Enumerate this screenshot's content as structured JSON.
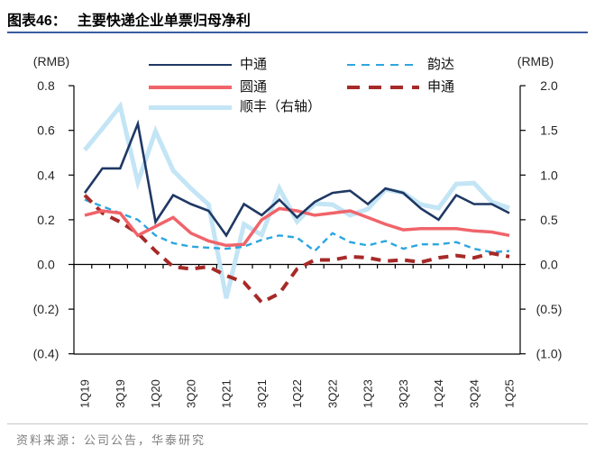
{
  "header": {
    "label": "图表46：",
    "title": "主要快递企业单票归母净利"
  },
  "axes": {
    "left_unit": "(RMB)",
    "right_unit": "(RMB)",
    "left_ticks": [
      "0.8",
      "0.6",
      "0.4",
      "0.2",
      "0.0",
      "(0.2)",
      "(0.4)"
    ],
    "left_values": [
      0.8,
      0.6,
      0.4,
      0.2,
      0.0,
      -0.2,
      -0.4
    ],
    "right_ticks": [
      "2.0",
      "1.5",
      "1.0",
      "0.5",
      "0.0",
      "(0.5)",
      "(1.0)"
    ],
    "right_values": [
      2.0,
      1.5,
      1.0,
      0.5,
      0.0,
      -0.5,
      -1.0
    ],
    "x_labels": [
      "1Q19",
      "3Q19",
      "1Q20",
      "3Q20",
      "1Q21",
      "3Q21",
      "1Q22",
      "3Q22",
      "1Q23",
      "3Q23",
      "1Q24",
      "3Q24",
      "1Q25"
    ]
  },
  "chart_data": {
    "type": "line",
    "title": "主要快递企业单票归母净利",
    "xlabel": "",
    "ylabel_left": "(RMB)",
    "ylabel_right": "(RMB)",
    "left_range": [
      -0.4,
      0.8
    ],
    "right_range": [
      -1.0,
      2.0
    ],
    "grid": false,
    "legend_position": "top-two-columns",
    "x": [
      "1Q19",
      "2Q19",
      "3Q19",
      "4Q19",
      "1Q20",
      "2Q20",
      "3Q20",
      "4Q20",
      "1Q21",
      "2Q21",
      "3Q21",
      "4Q21",
      "1Q22",
      "2Q22",
      "3Q22",
      "4Q22",
      "1Q23",
      "2Q23",
      "3Q23",
      "4Q23",
      "1Q24",
      "2Q24",
      "3Q24",
      "4Q24",
      "1Q25"
    ],
    "series": [
      {
        "id": "zto",
        "name": "中通",
        "axis": "left",
        "style": "solid",
        "color": "#1F3864",
        "width": 2.6,
        "values": [
          0.32,
          0.43,
          0.43,
          0.63,
          0.19,
          0.31,
          0.27,
          0.24,
          0.13,
          0.27,
          0.22,
          0.29,
          0.21,
          0.28,
          0.32,
          0.33,
          0.27,
          0.34,
          0.32,
          0.25,
          0.2,
          0.31,
          0.27,
          0.27,
          0.23
        ]
      },
      {
        "id": "yto",
        "name": "圆通",
        "axis": "left",
        "style": "solid",
        "color": "#F0646A",
        "width": 3.5,
        "values": [
          0.22,
          0.24,
          0.23,
          0.13,
          0.17,
          0.21,
          0.14,
          0.105,
          0.085,
          0.09,
          0.2,
          0.25,
          0.24,
          0.22,
          0.23,
          0.24,
          0.21,
          0.18,
          0.155,
          0.16,
          0.16,
          0.16,
          0.15,
          0.145,
          0.13
        ]
      },
      {
        "id": "sf",
        "name": "顺丰（右轴）",
        "axis": "right",
        "style": "solid",
        "color": "#C3E5F5",
        "width": 5,
        "values": [
          1.28,
          1.52,
          1.77,
          0.92,
          1.49,
          1.05,
          0.85,
          0.67,
          -0.38,
          0.45,
          0.33,
          0.85,
          0.48,
          0.68,
          0.67,
          0.55,
          0.62,
          0.84,
          0.8,
          0.67,
          0.63,
          0.9,
          0.91,
          0.7,
          0.63
        ]
      },
      {
        "id": "yunda",
        "name": "韵达",
        "axis": "left",
        "style": "dashed",
        "color": "#2CA6E0",
        "width": 2.4,
        "values": [
          0.29,
          0.26,
          0.23,
          0.2,
          0.13,
          0.095,
          0.08,
          0.075,
          0.07,
          0.08,
          0.11,
          0.13,
          0.12,
          0.06,
          0.14,
          0.1,
          0.085,
          0.105,
          0.07,
          0.09,
          0.09,
          0.1,
          0.07,
          0.055,
          0.06
        ]
      },
      {
        "id": "sto",
        "name": "申通",
        "axis": "left",
        "style": "dashed-thick",
        "color": "#A62A28",
        "width": 4,
        "values": [
          0.31,
          0.23,
          0.19,
          0.14,
          0.06,
          -0.01,
          -0.02,
          -0.01,
          -0.05,
          -0.08,
          -0.17,
          -0.13,
          -0.02,
          0.02,
          0.02,
          0.035,
          0.03,
          0.015,
          0.02,
          0.01,
          0.03,
          0.04,
          0.03,
          0.05,
          0.035
        ]
      }
    ]
  },
  "footer": {
    "source": "资料来源：公司公告，华泰研究"
  }
}
